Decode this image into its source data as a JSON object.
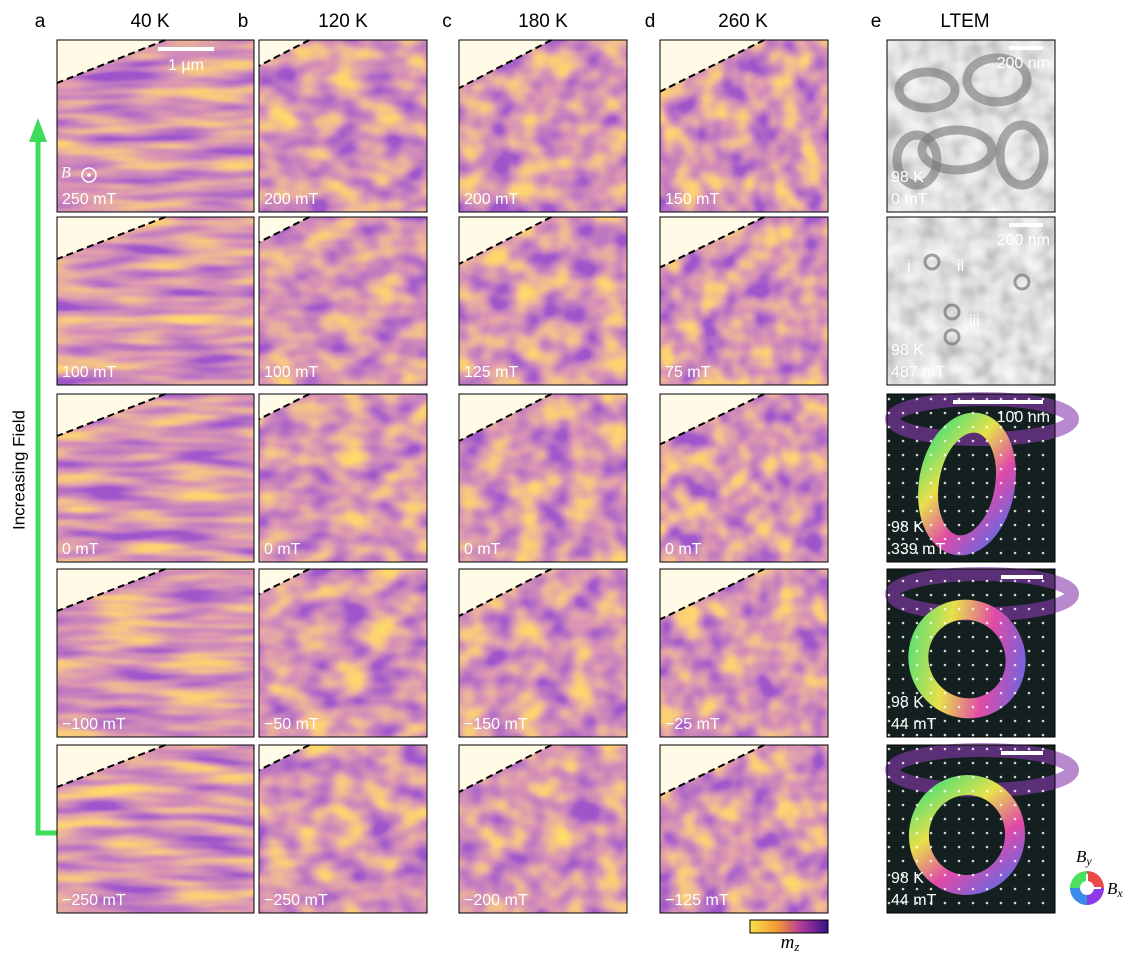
{
  "columns": [
    {
      "letter": "a",
      "header": "40 K",
      "fields": [
        "250 mT",
        "100 mT",
        "0 mT",
        "−100 mT",
        "−250 mT"
      ]
    },
    {
      "letter": "b",
      "header": "120 K",
      "fields": [
        "200 mT",
        "100 mT",
        "0 mT",
        "−50 mT",
        "−250 mT"
      ]
    },
    {
      "letter": "c",
      "header": "180 K",
      "fields": [
        "200 mT",
        "125 mT",
        "0 mT",
        "−150 mT",
        "−200 mT"
      ]
    },
    {
      "letter": "d",
      "header": "260 K",
      "fields": [
        "150 mT",
        "75 mT",
        "0 mT",
        "−25 mT",
        "−125 mT"
      ]
    }
  ],
  "scale_bar": "1 µm",
  "field_symbol": "B",
  "arrow_label": "Increasing Field",
  "colorbar": {
    "symbol": "m",
    "subscript": "z"
  },
  "ltem": {
    "letter": "e",
    "header": "LTEM",
    "panels": [
      {
        "temperature": "98 K",
        "field": "0 mT",
        "scale_bar": "200 nm"
      },
      {
        "temperature": "98 K",
        "field": "487 mT",
        "scale_bar": "200 nm",
        "markers": [
          "i",
          "ii",
          "iii"
        ]
      },
      {
        "temperature": "98 K",
        "field": "339 mT",
        "scale_bar": "100 nm"
      },
      {
        "temperature": "98 K",
        "field": "44 mT"
      },
      {
        "temperature": "98 K",
        "field": "44 mT"
      }
    ],
    "legend": {
      "y": {
        "symbol": "B",
        "subscript": "y"
      },
      "x": {
        "symbol": "B",
        "subscript": "x"
      }
    }
  }
}
